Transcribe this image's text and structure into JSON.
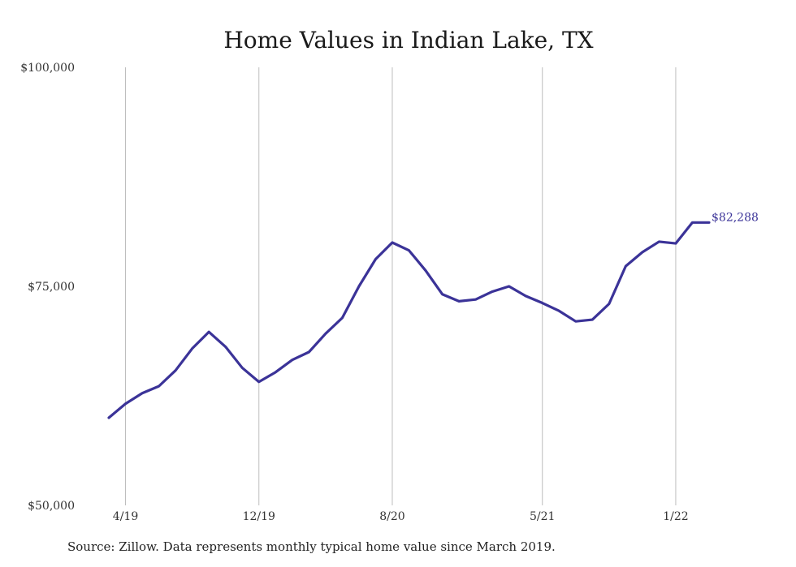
{
  "chart_data": {
    "type": "line",
    "title": "Home Values in Indian Lake, TX",
    "xlabel": "",
    "ylabel": "",
    "ylim": [
      50000,
      100000
    ],
    "y_ticks": [
      {
        "value": 100000,
        "label": "$100,000"
      },
      {
        "value": 75000,
        "label": "$75,000"
      },
      {
        "value": 50000,
        "label": "$50,000"
      }
    ],
    "x_ticks": [
      {
        "index": 1,
        "label": "4/19"
      },
      {
        "index": 9,
        "label": "12/19"
      },
      {
        "index": 17,
        "label": "8/20"
      },
      {
        "index": 26,
        "label": "5/21"
      },
      {
        "index": 34,
        "label": "1/22"
      }
    ],
    "grid": {
      "vertical": true,
      "horizontal": false
    },
    "x": [
      "3/19",
      "4/19",
      "5/19",
      "6/19",
      "7/19",
      "8/19",
      "9/19",
      "10/19",
      "11/19",
      "12/19",
      "1/20",
      "2/20",
      "3/20",
      "4/20",
      "5/20",
      "6/20",
      "7/20",
      "8/20",
      "9/20",
      "10/20",
      "11/20",
      "12/20",
      "1/21",
      "2/21",
      "3/21",
      "4/21",
      "5/21",
      "6/21",
      "7/21",
      "8/21",
      "9/21",
      "10/21",
      "11/21",
      "12/21",
      "1/22",
      "2/22",
      "3/22"
    ],
    "series": [
      {
        "color": "#3b3398",
        "values": [
          60000,
          61600,
          62800,
          63600,
          65400,
          67900,
          69800,
          68100,
          65700,
          64100,
          65200,
          66600,
          67500,
          69600,
          71400,
          75000,
          78100,
          80000,
          79100,
          76800,
          74100,
          73300,
          73500,
          74400,
          75000,
          73900,
          73100,
          72200,
          71000,
          71200,
          73000,
          77300,
          78900,
          80100,
          79900,
          82288,
          82288
        ]
      }
    ],
    "end_label": "$82,288",
    "source": "Source: Zillow. Data represents monthly typical home value since March 2019."
  }
}
